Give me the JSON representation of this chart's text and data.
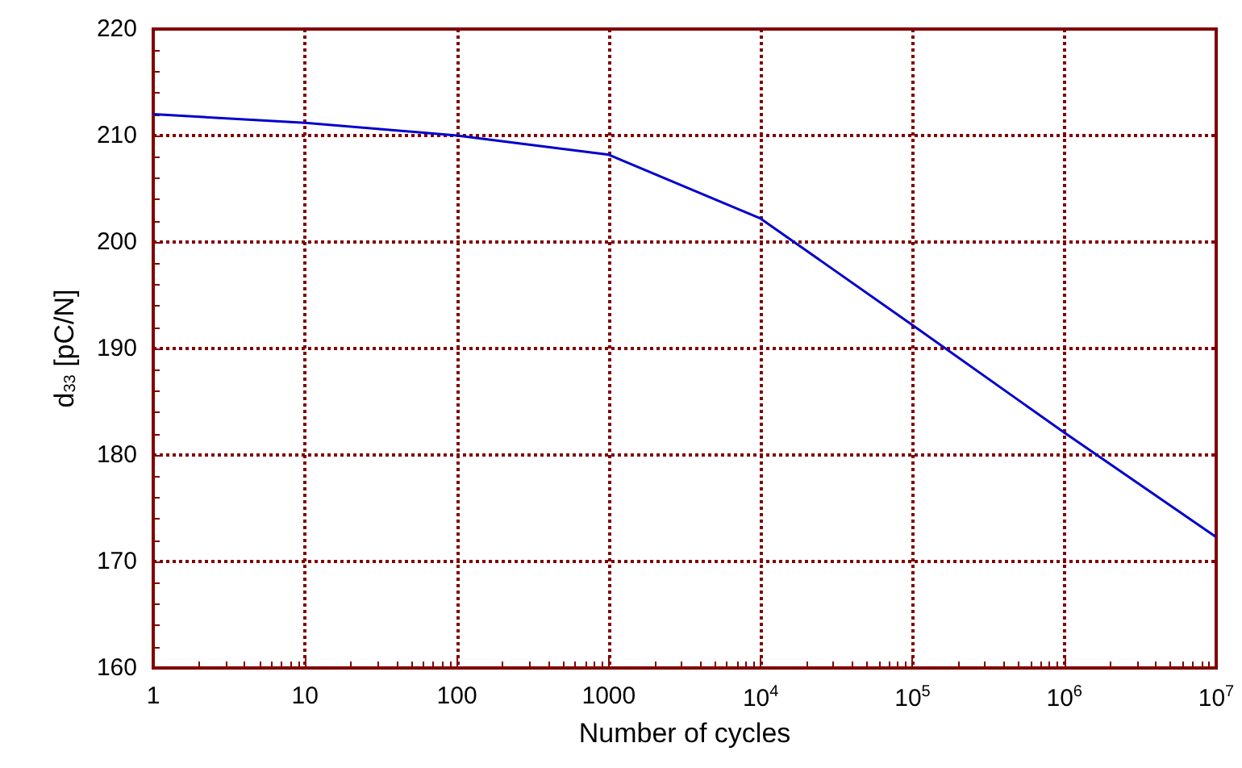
{
  "chart_data": {
    "type": "line",
    "xlabel": "Number of cycles",
    "ylabel": "d$_{33}$ [pC/N]",
    "x": [
      1,
      10,
      100,
      1000,
      10000,
      100000,
      1000000,
      10000000
    ],
    "series": [
      {
        "color": "#0000cc",
        "values": [
          212,
          211.2,
          210,
          208.2,
          202.2,
          192.2,
          182.1,
          172.3
        ]
      }
    ],
    "log": "x",
    "xlim": [
      1,
      10000000
    ],
    "xticks": [
      1,
      10,
      100,
      1000,
      {
        "value": 10000,
        "label": "10$^{4}$"
      },
      {
        "value": 100000,
        "label": "10$^{5}$"
      },
      {
        "value": 1000000,
        "label": "10$^{6}$"
      },
      {
        "value": 10000000,
        "label": "10$^{7}$"
      }
    ],
    "ylim": [
      160,
      220
    ],
    "yticks": [
      160,
      170,
      180,
      190,
      200,
      210,
      220
    ],
    "grid": true,
    "marker": "none",
    "line_style": "solid"
  }
}
